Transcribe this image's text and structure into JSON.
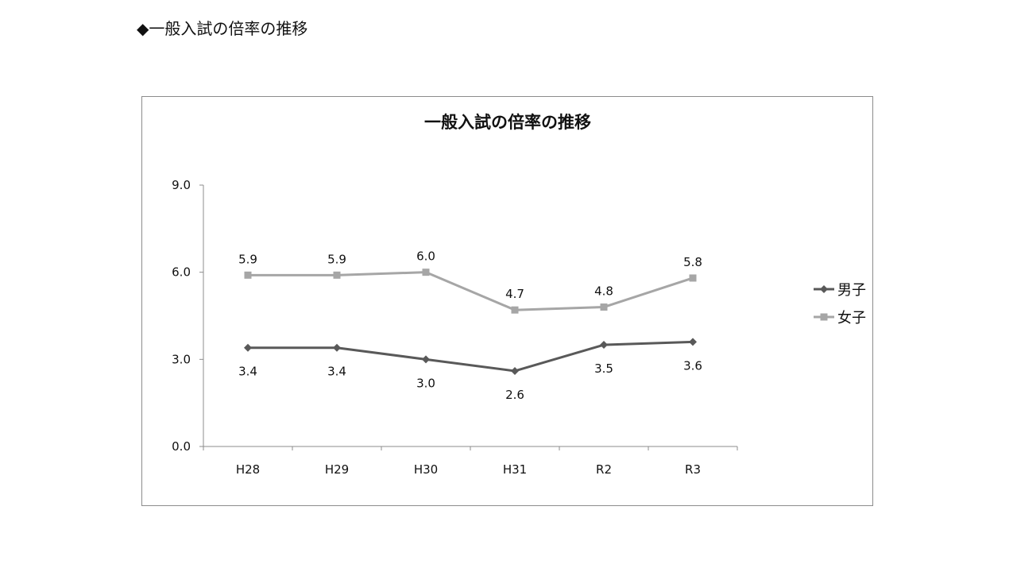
{
  "page": {
    "heading": "◆一般入試の倍率の推移"
  },
  "chart_data": {
    "type": "line",
    "title": "一般入試の倍率の推移",
    "xlabel": "",
    "ylabel": "",
    "categories": [
      "H28",
      "H29",
      "H30",
      "H31",
      "R2",
      "R3"
    ],
    "ylim": [
      0,
      9
    ],
    "yticks": [
      "0.0",
      "3.0",
      "6.0",
      "9.0"
    ],
    "grid": false,
    "legend_position": "right",
    "series": [
      {
        "name": "男子",
        "values": [
          3.4,
          3.4,
          3.0,
          2.6,
          3.5,
          3.6
        ],
        "labels": [
          "3.4",
          "3.4",
          "3.0",
          "2.6",
          "3.5",
          "3.6"
        ],
        "label_position": "below",
        "marker": "diamond",
        "color": "#595959"
      },
      {
        "name": "女子",
        "values": [
          5.9,
          5.9,
          6.0,
          4.7,
          4.8,
          5.8
        ],
        "labels": [
          "5.9",
          "5.9",
          "6.0",
          "4.7",
          "4.8",
          "5.8"
        ],
        "label_position": "above",
        "marker": "square",
        "color": "#a6a6a6"
      }
    ]
  }
}
